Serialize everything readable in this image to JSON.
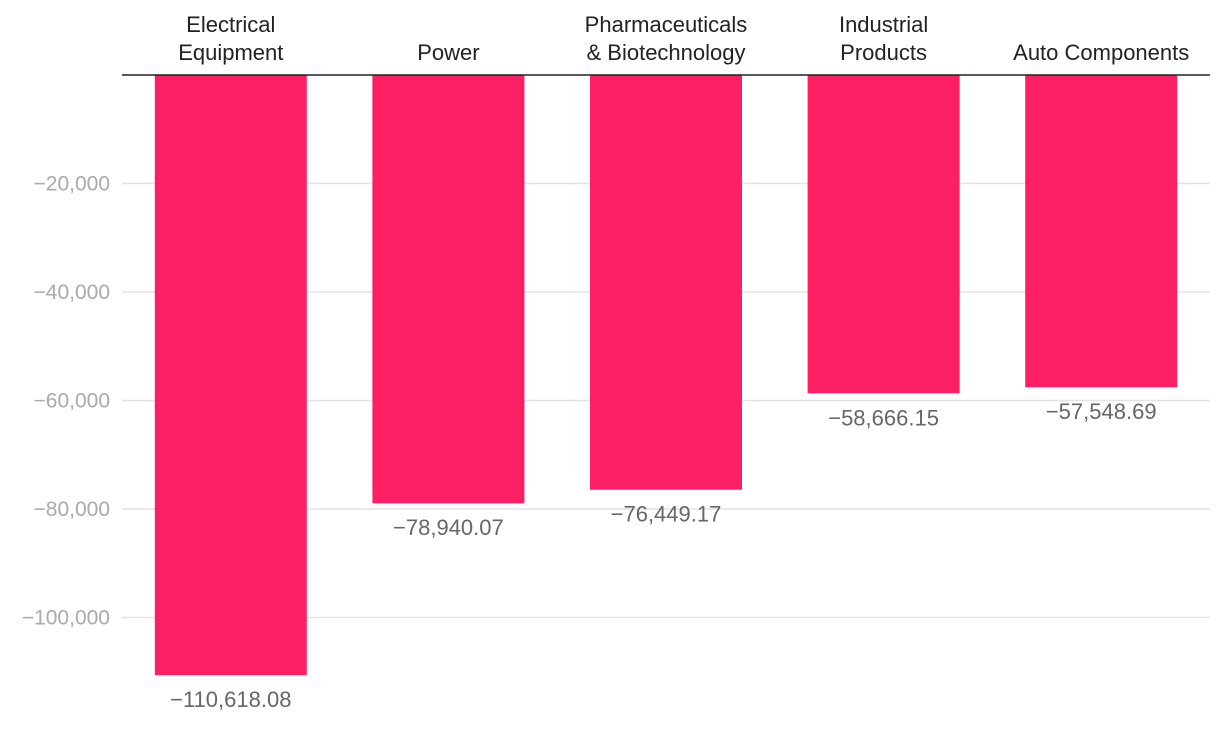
{
  "chart_data": {
    "type": "bar",
    "orientation": "vertical",
    "categories": [
      [
        "Electrical",
        "Equipment"
      ],
      [
        "Power"
      ],
      [
        "Pharmaceuticals",
        "& Biotechnology"
      ],
      [
        "Industrial",
        "Products"
      ],
      [
        "Auto Components"
      ]
    ],
    "values": [
      -110618.08,
      -78940.07,
      -76449.17,
      -58666.15,
      -57548.69
    ],
    "value_labels": [
      "−110,618.08",
      "−78,940.07",
      "−76,449.17",
      "−58,666.15",
      "−57,548.69"
    ],
    "y_ticks": [
      -20000,
      -40000,
      -60000,
      -80000,
      -100000
    ],
    "y_tick_labels": [
      "−20,000",
      "−40,000",
      "−60,000",
      "−80,000",
      "−100,000"
    ],
    "ylim": [
      -120000,
      0
    ],
    "category_axis_position": "top",
    "grid": true,
    "legend": "none",
    "bar_color": "#fc1f64",
    "title": "",
    "xlabel": "",
    "ylabel": ""
  }
}
